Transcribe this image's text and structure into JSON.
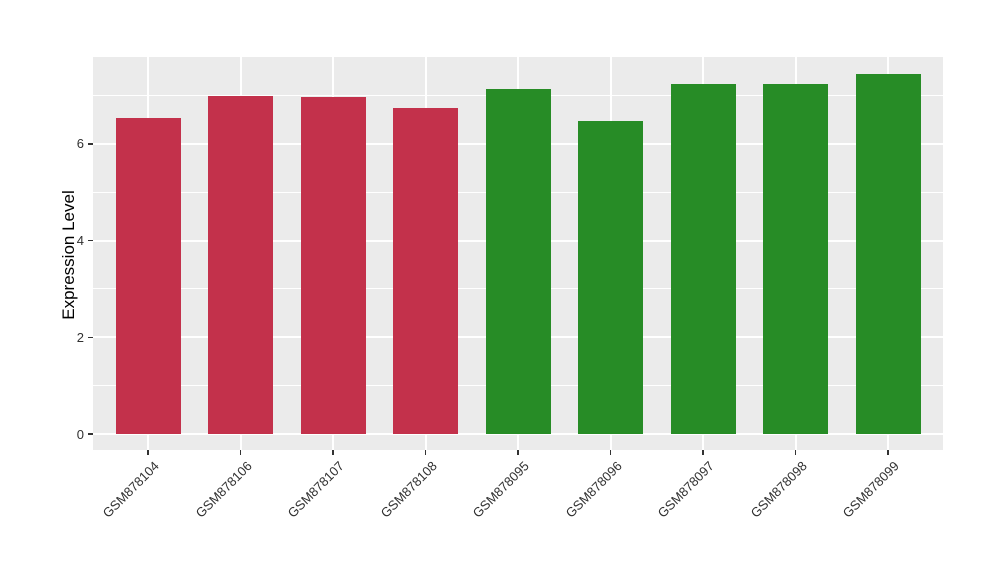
{
  "chart_data": {
    "type": "bar",
    "title": "",
    "xlabel": "",
    "ylabel": "Expression Level",
    "categories": [
      "GSM878104",
      "GSM878106",
      "GSM878107",
      "GSM878108",
      "GSM878095",
      "GSM878096",
      "GSM878097",
      "GSM878098",
      "GSM878099"
    ],
    "values": [
      6.53,
      6.99,
      6.96,
      6.74,
      7.13,
      6.47,
      7.23,
      7.23,
      7.44
    ],
    "groups": [
      "red",
      "red",
      "red",
      "red",
      "green",
      "green",
      "green",
      "green",
      "green"
    ],
    "group_colors": {
      "red": "#C3314B",
      "green": "#278C26"
    },
    "yticks": [
      0,
      2,
      4,
      6
    ],
    "minor_gridlines": [
      1,
      3,
      5,
      7
    ],
    "ylim": [
      0,
      7.8
    ],
    "grid": true,
    "legend": "none",
    "panel_bg": "#EBEBEB",
    "grid_color": "#FFFFFF",
    "bar_width_fraction": 0.7
  }
}
